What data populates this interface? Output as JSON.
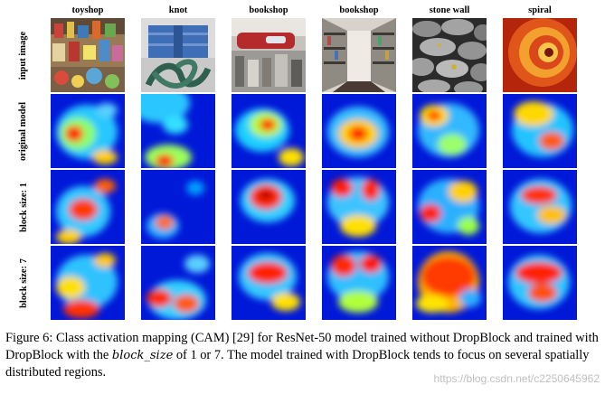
{
  "figure": {
    "columns": [
      "toyshop",
      "knot",
      "bookshop",
      "bookshop",
      "stone wall",
      "spiral"
    ],
    "rows": [
      "input image",
      "original model",
      "block size: 1",
      "block size: 7"
    ]
  },
  "caption": {
    "part1": "Figure 6: Class activation mapping (CAM) [29] for ResNet-50 model trained without DropBlock and trained with DropBlock with the ",
    "param": "block_size",
    "part2": " of 1 or 7. The model trained with DropBlock tends to focus on several spatially distributed regions."
  },
  "watermark": "https://blog.csdn.net/c2250645962"
}
